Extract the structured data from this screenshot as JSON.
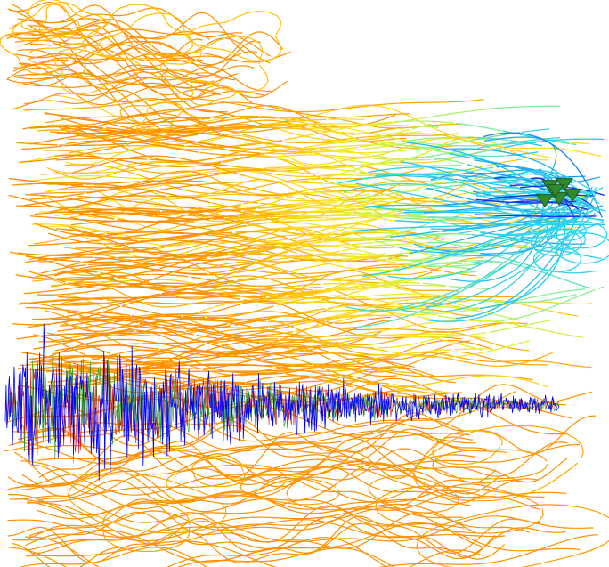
{
  "figure": {
    "background": "#ffffff",
    "contours": {
      "palette": [
        "#0a1cf0",
        "#1a6cf8",
        "#22c8f0",
        "#7cf0a0",
        "#d8f23a",
        "#ffe020",
        "#ffb800",
        "#ff9000"
      ],
      "blue_zone_color": "#1433e8",
      "cyan_zone_color": "#2ad6f2"
    },
    "waveform": {
      "components": [
        {
          "channel": "blue",
          "color": "#0000ff"
        },
        {
          "channel": "green",
          "color": "#1c9a2a"
        },
        {
          "channel": "red",
          "color": "#d01010"
        }
      ],
      "relative_amplitude": [
        1.0,
        0.85,
        0.62,
        0.44,
        0.3,
        0.2,
        0.14,
        0.1
      ]
    },
    "markers": {
      "symbol": "triangle",
      "color": "#2f8a2f",
      "stroke": "#1e5a1e",
      "count": 6
    }
  }
}
